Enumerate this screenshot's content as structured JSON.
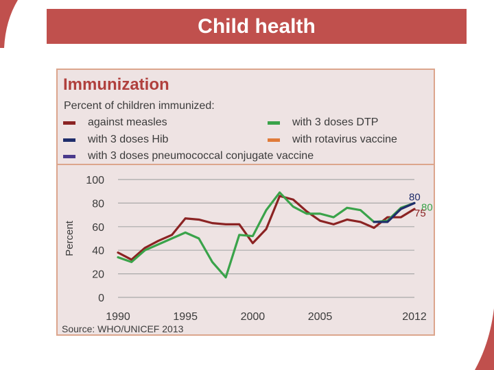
{
  "slide_title": "Child health",
  "chart_data": {
    "type": "line",
    "title": "Immunization",
    "subtitle": "Percent of children immunized:",
    "ylabel": "Percent",
    "xlabel": "",
    "xlim": [
      1990,
      2012
    ],
    "ylim": [
      0,
      100
    ],
    "x_ticks": [
      1990,
      1995,
      2000,
      2005,
      2012
    ],
    "y_ticks": [
      0,
      20,
      40,
      60,
      80,
      100
    ],
    "grid": true,
    "legend": [
      {
        "label": "against measles",
        "color": "#8b2323"
      },
      {
        "label": "with 3 doses Hib",
        "color": "#1f2d6b"
      },
      {
        "label": "with 3 doses pneumococcal conjugate vaccine",
        "color": "#4a3a8c"
      },
      {
        "label": "with 3 doses DTP",
        "color": "#3aa34a"
      },
      {
        "label": "with rotavirus vaccine",
        "color": "#e07b39"
      }
    ],
    "series": [
      {
        "name": "against measles",
        "color": "#8b2323",
        "x": [
          1990,
          1991,
          1992,
          1993,
          1994,
          1995,
          1996,
          1997,
          1998,
          1999,
          2000,
          2001,
          2002,
          2003,
          2004,
          2005,
          2006,
          2007,
          2008,
          2009,
          2010,
          2011,
          2012
        ],
        "y": [
          38,
          32,
          42,
          48,
          53,
          67,
          66,
          63,
          62,
          62,
          46,
          58,
          86,
          83,
          73,
          65,
          62,
          66,
          64,
          59,
          68,
          68,
          75
        ]
      },
      {
        "name": "with 3 doses DTP",
        "color": "#3aa34a",
        "x": [
          1990,
          1991,
          1992,
          1993,
          1994,
          1995,
          1996,
          1997,
          1998,
          1999,
          2000,
          2001,
          2002,
          2003,
          2004,
          2005,
          2006,
          2007,
          2008,
          2009,
          2010,
          2011,
          2012
        ],
        "y": [
          34,
          30,
          40,
          45,
          50,
          55,
          50,
          30,
          17,
          53,
          52,
          74,
          89,
          77,
          71,
          71,
          68,
          76,
          74,
          64,
          65,
          76,
          80
        ]
      },
      {
        "name": "with 3 doses Hib",
        "color": "#1f2d6b",
        "x": [
          2009,
          2010,
          2011,
          2012
        ],
        "y": [
          64,
          64,
          75,
          80
        ]
      }
    ],
    "end_labels": [
      {
        "series": "with 3 doses Hib",
        "text": "80",
        "color": "#1f2d6b"
      },
      {
        "series": "with 3 doses DTP",
        "text": "80",
        "color": "#3aa34a"
      },
      {
        "series": "against measles",
        "text": "75",
        "color": "#8b2323"
      }
    ],
    "source": "Source: WHO/UNICEF 2013"
  }
}
